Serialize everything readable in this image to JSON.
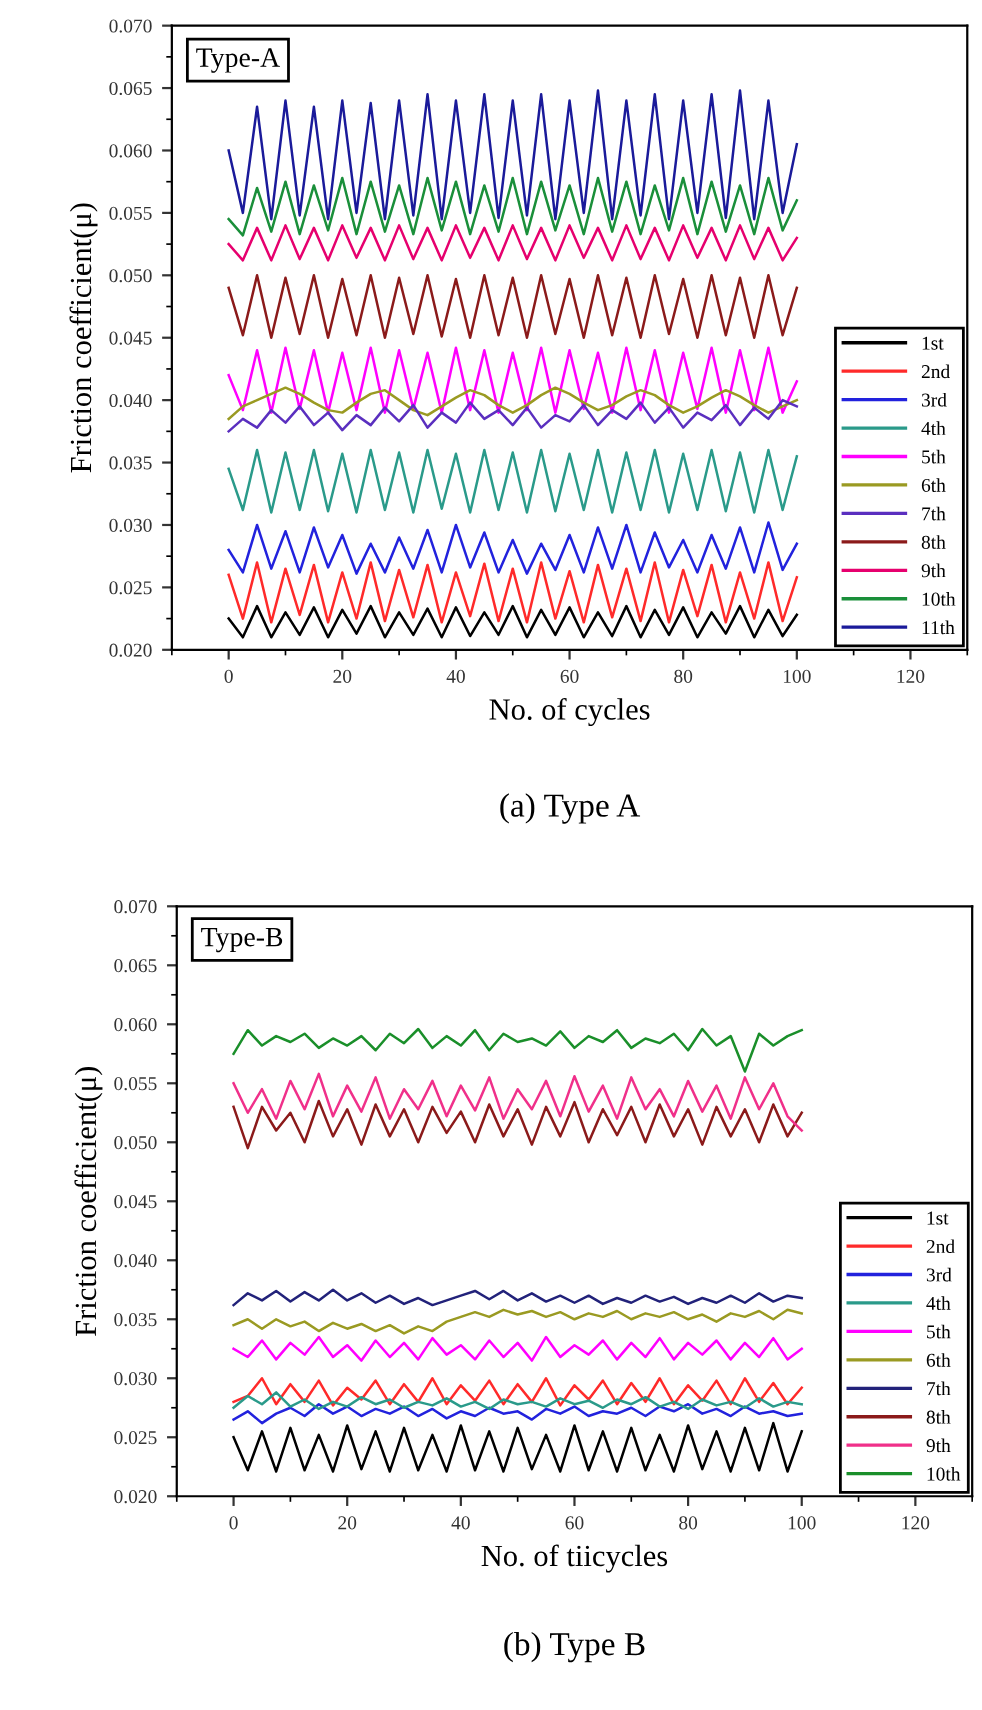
{
  "chart_data": [
    {
      "type": "line",
      "title": "Type-A",
      "xlabel": "No. of cycles",
      "ylabel": "Friction coefficient(μ)",
      "annotations": [
        "(a) Type A"
      ],
      "xlim": [
        -10,
        130
      ],
      "xticks": [
        0,
        20,
        40,
        60,
        80,
        100,
        120
      ],
      "ylim": [
        0.02,
        0.07
      ],
      "yticks": [
        {
          "value": 0.02,
          "label": "0.020"
        },
        {
          "value": 0.025,
          "label": "0.025"
        },
        {
          "value": 0.03,
          "label": "0.030"
        },
        {
          "value": 0.035,
          "label": "0.035"
        },
        {
          "value": 0.04,
          "label": "0.040"
        },
        {
          "value": 0.045,
          "label": "0.045"
        },
        {
          "value": 0.05,
          "label": "0.050"
        },
        {
          "value": 0.055,
          "label": "0.055"
        },
        {
          "value": 0.06,
          "label": "0.060"
        },
        {
          "value": 0.065,
          "label": "0.065"
        },
        {
          "value": 0.07,
          "label": "0.070"
        }
      ],
      "legend": "lower right",
      "line_style": "solid",
      "x": [
        0,
        2.5,
        5,
        7.5,
        10,
        12.5,
        15,
        17.5,
        20,
        22.5,
        25,
        27.5,
        30,
        32.5,
        35,
        37.5,
        40,
        42.5,
        45,
        47.5,
        50,
        52.5,
        55,
        57.5,
        60,
        62.5,
        65,
        67.5,
        70,
        72.5,
        75,
        77.5,
        80,
        82.5,
        85,
        87.5,
        90,
        92.5,
        95,
        97.5,
        100
      ],
      "series": [
        {
          "name": "1st",
          "color": "#000000",
          "values": [
            0.0225,
            0.021,
            0.0235,
            0.021,
            0.023,
            0.0212,
            0.0234,
            0.021,
            0.0232,
            0.0213,
            0.0235,
            0.021,
            0.023,
            0.0212,
            0.0233,
            0.021,
            0.0234,
            0.0211,
            0.023,
            0.0212,
            0.0235,
            0.021,
            0.0232,
            0.0212,
            0.0234,
            0.021,
            0.023,
            0.0211,
            0.0235,
            0.021,
            0.0232,
            0.0212,
            0.0234,
            0.021,
            0.023,
            0.0213,
            0.0235,
            0.021,
            0.0232,
            0.0211,
            0.0228
          ]
        },
        {
          "name": "2nd",
          "color": "#ff2a2a",
          "values": [
            0.026,
            0.0225,
            0.027,
            0.0222,
            0.0265,
            0.0228,
            0.0268,
            0.0222,
            0.0262,
            0.0225,
            0.027,
            0.0223,
            0.0264,
            0.0226,
            0.0268,
            0.0222,
            0.0262,
            0.0227,
            0.0269,
            0.0223,
            0.0265,
            0.0222,
            0.027,
            0.0225,
            0.0263,
            0.0222,
            0.0268,
            0.0226,
            0.0265,
            0.0223,
            0.027,
            0.0222,
            0.0264,
            0.0227,
            0.0268,
            0.0222,
            0.0262,
            0.0225,
            0.027,
            0.0223,
            0.0258
          ]
        },
        {
          "name": "3rd",
          "color": "#2222dd",
          "values": [
            0.028,
            0.0262,
            0.03,
            0.0265,
            0.0295,
            0.0262,
            0.0298,
            0.0266,
            0.0292,
            0.0261,
            0.0285,
            0.0262,
            0.029,
            0.0265,
            0.0296,
            0.0262,
            0.03,
            0.0266,
            0.0294,
            0.0262,
            0.0288,
            0.0261,
            0.0285,
            0.0264,
            0.0292,
            0.0262,
            0.0298,
            0.0265,
            0.03,
            0.0262,
            0.0294,
            0.0266,
            0.0288,
            0.0262,
            0.0292,
            0.0265,
            0.0298,
            0.0262,
            0.0302,
            0.0264,
            0.0285
          ]
        },
        {
          "name": "4th",
          "color": "#2a9a8a",
          "values": [
            0.0345,
            0.0312,
            0.036,
            0.031,
            0.0358,
            0.0312,
            0.036,
            0.0311,
            0.0357,
            0.031,
            0.036,
            0.0312,
            0.0358,
            0.031,
            0.036,
            0.0313,
            0.0357,
            0.031,
            0.036,
            0.0312,
            0.0358,
            0.031,
            0.036,
            0.0311,
            0.0357,
            0.0312,
            0.036,
            0.031,
            0.0358,
            0.0312,
            0.036,
            0.031,
            0.0357,
            0.0312,
            0.036,
            0.0311,
            0.0358,
            0.031,
            0.036,
            0.0312,
            0.0355
          ]
        },
        {
          "name": "5th",
          "color": "#ff00ff",
          "values": [
            0.042,
            0.0392,
            0.044,
            0.039,
            0.0442,
            0.0393,
            0.044,
            0.039,
            0.0438,
            0.0392,
            0.0442,
            0.039,
            0.044,
            0.0393,
            0.0438,
            0.039,
            0.0442,
            0.0392,
            0.044,
            0.039,
            0.0438,
            0.0392,
            0.0442,
            0.039,
            0.044,
            0.0393,
            0.0438,
            0.039,
            0.0442,
            0.0392,
            0.044,
            0.039,
            0.0438,
            0.0393,
            0.0442,
            0.039,
            0.044,
            0.0392,
            0.0442,
            0.039,
            0.0415
          ]
        },
        {
          "name": "6th",
          "color": "#9a9a22",
          "values": [
            0.0385,
            0.0395,
            0.04,
            0.0405,
            0.041,
            0.0405,
            0.0398,
            0.0392,
            0.039,
            0.0398,
            0.0405,
            0.0408,
            0.04,
            0.0392,
            0.0388,
            0.0395,
            0.0402,
            0.0408,
            0.0404,
            0.0396,
            0.039,
            0.0396,
            0.0404,
            0.041,
            0.0405,
            0.0398,
            0.0392,
            0.0396,
            0.0403,
            0.0408,
            0.0404,
            0.0396,
            0.039,
            0.0395,
            0.0402,
            0.0408,
            0.0403,
            0.0396,
            0.039,
            0.0395,
            0.04
          ]
        },
        {
          "name": "7th",
          "color": "#5a2fbf",
          "values": [
            0.0375,
            0.0385,
            0.0378,
            0.0392,
            0.0382,
            0.0395,
            0.038,
            0.039,
            0.0376,
            0.0388,
            0.038,
            0.0394,
            0.0383,
            0.0396,
            0.0378,
            0.039,
            0.0382,
            0.0398,
            0.0385,
            0.0392,
            0.038,
            0.0394,
            0.0378,
            0.0388,
            0.0383,
            0.0396,
            0.038,
            0.0392,
            0.0385,
            0.0398,
            0.0382,
            0.0394,
            0.0378,
            0.039,
            0.0384,
            0.0396,
            0.038,
            0.0394,
            0.0385,
            0.04,
            0.0395
          ]
        },
        {
          "name": "8th",
          "color": "#8b1a1a",
          "values": [
            0.049,
            0.0452,
            0.05,
            0.045,
            0.0498,
            0.0453,
            0.05,
            0.045,
            0.0497,
            0.0452,
            0.05,
            0.045,
            0.0498,
            0.0453,
            0.05,
            0.0451,
            0.0497,
            0.045,
            0.05,
            0.0452,
            0.0498,
            0.045,
            0.05,
            0.0453,
            0.0497,
            0.045,
            0.05,
            0.0452,
            0.0498,
            0.045,
            0.05,
            0.0453,
            0.0497,
            0.045,
            0.05,
            0.0452,
            0.0498,
            0.045,
            0.05,
            0.0452,
            0.049
          ]
        },
        {
          "name": "9th",
          "color": "#e6006e",
          "values": [
            0.0525,
            0.0512,
            0.0538,
            0.0512,
            0.054,
            0.0513,
            0.0538,
            0.0512,
            0.054,
            0.0514,
            0.0538,
            0.0512,
            0.054,
            0.0513,
            0.0538,
            0.0512,
            0.054,
            0.0514,
            0.0538,
            0.0512,
            0.054,
            0.0513,
            0.0538,
            0.0512,
            0.054,
            0.0514,
            0.0538,
            0.0512,
            0.054,
            0.0513,
            0.0538,
            0.0512,
            0.054,
            0.0514,
            0.0538,
            0.0512,
            0.054,
            0.0513,
            0.0538,
            0.0512,
            0.053
          ]
        },
        {
          "name": "10th",
          "color": "#1a8f3a",
          "values": [
            0.0545,
            0.0532,
            0.057,
            0.0535,
            0.0575,
            0.0533,
            0.0572,
            0.0536,
            0.0578,
            0.0533,
            0.0575,
            0.0535,
            0.0572,
            0.0533,
            0.0578,
            0.0536,
            0.0575,
            0.0533,
            0.0572,
            0.0535,
            0.0578,
            0.0533,
            0.0575,
            0.0536,
            0.0572,
            0.0533,
            0.0578,
            0.0535,
            0.0575,
            0.0533,
            0.0572,
            0.0536,
            0.0578,
            0.0533,
            0.0575,
            0.0535,
            0.0572,
            0.0533,
            0.0578,
            0.0536,
            0.056
          ]
        },
        {
          "name": "11th",
          "color": "#1a1a9a",
          "values": [
            0.06,
            0.055,
            0.0635,
            0.0545,
            0.064,
            0.0548,
            0.0635,
            0.0545,
            0.064,
            0.055,
            0.0638,
            0.0545,
            0.064,
            0.0548,
            0.0645,
            0.0545,
            0.064,
            0.055,
            0.0645,
            0.0546,
            0.064,
            0.0548,
            0.0645,
            0.0545,
            0.064,
            0.055,
            0.0648,
            0.0545,
            0.064,
            0.0548,
            0.0645,
            0.0545,
            0.064,
            0.055,
            0.0645,
            0.0546,
            0.0648,
            0.0545,
            0.064,
            0.055,
            0.0605
          ]
        }
      ]
    },
    {
      "type": "line",
      "title": "Type-B",
      "xlabel": "No. of tiicycles",
      "ylabel": "Friction coefficient(μ)",
      "annotations": [
        "(b) Type B"
      ],
      "xlim": [
        -10,
        130
      ],
      "xticks": [
        0,
        20,
        40,
        60,
        80,
        100,
        120
      ],
      "ylim": [
        0.02,
        0.07
      ],
      "yticks": [
        {
          "value": 0.02,
          "label": "0.020"
        },
        {
          "value": 0.025,
          "label": "0.025"
        },
        {
          "value": 0.03,
          "label": "0.030"
        },
        {
          "value": 0.035,
          "label": "0.035"
        },
        {
          "value": 0.04,
          "label": "0.040"
        },
        {
          "value": 0.045,
          "label": "0.045"
        },
        {
          "value": 0.05,
          "label": "0.050"
        },
        {
          "value": 0.055,
          "label": "0.055"
        },
        {
          "value": 0.06,
          "label": "0.060"
        },
        {
          "value": 0.065,
          "label": "0.065"
        },
        {
          "value": 0.07,
          "label": "0.070"
        }
      ],
      "legend": "lower right",
      "line_style": "solid",
      "x": [
        0,
        2.5,
        5,
        7.5,
        10,
        12.5,
        15,
        17.5,
        20,
        22.5,
        25,
        27.5,
        30,
        32.5,
        35,
        37.5,
        40,
        42.5,
        45,
        47.5,
        50,
        52.5,
        55,
        57.5,
        60,
        62.5,
        65,
        67.5,
        70,
        72.5,
        75,
        77.5,
        80,
        82.5,
        85,
        87.5,
        90,
        92.5,
        95,
        97.5,
        100
      ],
      "series": [
        {
          "name": "1st",
          "color": "#000000",
          "values": [
            0.025,
            0.0222,
            0.0255,
            0.0221,
            0.0258,
            0.0222,
            0.0252,
            0.0221,
            0.026,
            0.0223,
            0.0255,
            0.0221,
            0.0258,
            0.0222,
            0.0252,
            0.0221,
            0.026,
            0.0222,
            0.0255,
            0.0221,
            0.0258,
            0.0223,
            0.0252,
            0.0221,
            0.026,
            0.0222,
            0.0255,
            0.0221,
            0.0258,
            0.0222,
            0.0252,
            0.0221,
            0.026,
            0.0223,
            0.0255,
            0.0221,
            0.0258,
            0.0222,
            0.0262,
            0.0221,
            0.0255
          ]
        },
        {
          "name": "2nd",
          "color": "#ff2a2a",
          "values": [
            0.028,
            0.0285,
            0.03,
            0.0278,
            0.0295,
            0.028,
            0.0298,
            0.0277,
            0.0292,
            0.0282,
            0.0298,
            0.0278,
            0.0295,
            0.028,
            0.03,
            0.0278,
            0.0294,
            0.0281,
            0.0298,
            0.0278,
            0.0295,
            0.028,
            0.03,
            0.0277,
            0.0294,
            0.0282,
            0.0298,
            0.0278,
            0.0296,
            0.028,
            0.03,
            0.0278,
            0.0294,
            0.0281,
            0.0298,
            0.0278,
            0.03,
            0.028,
            0.0296,
            0.0278,
            0.0292
          ]
        },
        {
          "name": "3rd",
          "color": "#2222dd",
          "values": [
            0.0265,
            0.0272,
            0.0262,
            0.027,
            0.0275,
            0.0268,
            0.0278,
            0.027,
            0.0276,
            0.0268,
            0.0274,
            0.027,
            0.0276,
            0.0268,
            0.0274,
            0.0266,
            0.0272,
            0.0268,
            0.0275,
            0.027,
            0.0272,
            0.0265,
            0.0274,
            0.027,
            0.0276,
            0.0268,
            0.0272,
            0.027,
            0.0275,
            0.0268,
            0.0276,
            0.0272,
            0.0278,
            0.027,
            0.0274,
            0.0268,
            0.0276,
            0.027,
            0.0272,
            0.0268,
            0.027
          ]
        },
        {
          "name": "4th",
          "color": "#2a9a8a",
          "values": [
            0.0275,
            0.0285,
            0.0278,
            0.0288,
            0.0276,
            0.0282,
            0.0274,
            0.028,
            0.0276,
            0.0284,
            0.0278,
            0.0282,
            0.0275,
            0.028,
            0.0277,
            0.0283,
            0.0276,
            0.028,
            0.0274,
            0.0282,
            0.0278,
            0.028,
            0.0276,
            0.0283,
            0.0278,
            0.0281,
            0.0275,
            0.0282,
            0.0278,
            0.0284,
            0.0276,
            0.028,
            0.0274,
            0.0282,
            0.0277,
            0.028,
            0.0275,
            0.0283,
            0.0276,
            0.028,
            0.0278
          ]
        },
        {
          "name": "5th",
          "color": "#ff00ff",
          "values": [
            0.0325,
            0.0318,
            0.0332,
            0.0316,
            0.033,
            0.032,
            0.0335,
            0.0318,
            0.0328,
            0.0315,
            0.0332,
            0.0318,
            0.033,
            0.0316,
            0.0334,
            0.032,
            0.0328,
            0.0316,
            0.0332,
            0.0318,
            0.033,
            0.0315,
            0.0335,
            0.0318,
            0.0328,
            0.032,
            0.0332,
            0.0316,
            0.033,
            0.0318,
            0.0334,
            0.0316,
            0.033,
            0.032,
            0.0332,
            0.0316,
            0.033,
            0.0318,
            0.0334,
            0.0316,
            0.0325
          ]
        },
        {
          "name": "6th",
          "color": "#9a9a22",
          "values": [
            0.0345,
            0.035,
            0.0342,
            0.035,
            0.0344,
            0.0348,
            0.034,
            0.0347,
            0.0342,
            0.0346,
            0.034,
            0.0345,
            0.0338,
            0.0344,
            0.034,
            0.0348,
            0.0352,
            0.0356,
            0.0352,
            0.0358,
            0.0354,
            0.0357,
            0.0352,
            0.0356,
            0.035,
            0.0355,
            0.0352,
            0.0357,
            0.035,
            0.0355,
            0.0352,
            0.0356,
            0.035,
            0.0354,
            0.0348,
            0.0355,
            0.0352,
            0.0357,
            0.035,
            0.0358,
            0.0355
          ]
        },
        {
          "name": "7th",
          "color": "#22227a",
          "values": [
            0.0362,
            0.0372,
            0.0366,
            0.0374,
            0.0365,
            0.0373,
            0.0366,
            0.0375,
            0.0366,
            0.0372,
            0.0364,
            0.037,
            0.0363,
            0.0368,
            0.0362,
            0.0366,
            0.037,
            0.0374,
            0.0367,
            0.0374,
            0.0366,
            0.0372,
            0.0365,
            0.037,
            0.0364,
            0.037,
            0.0363,
            0.0368,
            0.0364,
            0.037,
            0.0365,
            0.0369,
            0.0363,
            0.0368,
            0.0364,
            0.037,
            0.0364,
            0.0372,
            0.0365,
            0.037,
            0.0368
          ]
        },
        {
          "name": "8th",
          "color": "#8b1a1a",
          "values": [
            0.053,
            0.0495,
            0.053,
            0.051,
            0.0525,
            0.05,
            0.0535,
            0.0505,
            0.0528,
            0.0498,
            0.0532,
            0.0505,
            0.0528,
            0.05,
            0.053,
            0.0508,
            0.0526,
            0.05,
            0.0532,
            0.0505,
            0.0528,
            0.0498,
            0.053,
            0.0505,
            0.0534,
            0.05,
            0.0528,
            0.0506,
            0.053,
            0.05,
            0.0532,
            0.0505,
            0.0528,
            0.0498,
            0.053,
            0.0505,
            0.0528,
            0.05,
            0.0532,
            0.0505,
            0.0525
          ]
        },
        {
          "name": "9th",
          "color": "#f0308a",
          "values": [
            0.055,
            0.0525,
            0.0545,
            0.052,
            0.0552,
            0.0528,
            0.0558,
            0.0522,
            0.0548,
            0.0526,
            0.0555,
            0.052,
            0.0545,
            0.0528,
            0.0552,
            0.0522,
            0.0548,
            0.0527,
            0.0555,
            0.052,
            0.0545,
            0.0528,
            0.0552,
            0.0522,
            0.0556,
            0.0526,
            0.0548,
            0.052,
            0.0555,
            0.0528,
            0.0545,
            0.0522,
            0.0552,
            0.0526,
            0.0548,
            0.052,
            0.0555,
            0.0528,
            0.055,
            0.0522,
            0.051
          ]
        },
        {
          "name": "10th",
          "color": "#1a8f2a",
          "values": [
            0.0575,
            0.0595,
            0.0582,
            0.059,
            0.0585,
            0.0592,
            0.058,
            0.0588,
            0.0582,
            0.059,
            0.0578,
            0.0592,
            0.0584,
            0.0596,
            0.058,
            0.059,
            0.0582,
            0.0595,
            0.0578,
            0.0592,
            0.0585,
            0.0588,
            0.0582,
            0.0594,
            0.058,
            0.059,
            0.0585,
            0.0595,
            0.058,
            0.0588,
            0.0584,
            0.0592,
            0.0578,
            0.0596,
            0.0582,
            0.059,
            0.056,
            0.0592,
            0.0582,
            0.059,
            0.0595
          ]
        }
      ]
    }
  ]
}
